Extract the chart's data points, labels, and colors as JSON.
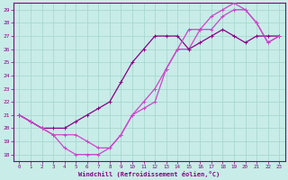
{
  "xlabel": "Windchill (Refroidissement éolien,°C)",
  "bg_color": "#c8ece8",
  "grid_color": "#a8d8d0",
  "line_color1": "#cc44cc",
  "line_color2": "#880088",
  "line_color3": "#cc44cc",
  "xlim": [
    0,
    23
  ],
  "ylim": [
    18,
    29
  ],
  "xticks": [
    0,
    1,
    2,
    3,
    4,
    5,
    6,
    7,
    8,
    9,
    10,
    11,
    12,
    13,
    14,
    15,
    16,
    17,
    18,
    19,
    20,
    21,
    22,
    23
  ],
  "yticks": [
    18,
    19,
    20,
    21,
    22,
    23,
    24,
    25,
    26,
    27,
    28,
    29
  ],
  "curve1_x": [
    0,
    1,
    2,
    3,
    4,
    5,
    6,
    7,
    8,
    9,
    10,
    11,
    12,
    13,
    14,
    15,
    16,
    17,
    18,
    19,
    20,
    21,
    22,
    23
  ],
  "curve1_y": [
    21.0,
    20.5,
    20.0,
    19.5,
    18.5,
    18.0,
    18.0,
    18.0,
    18.5,
    19.5,
    21.0,
    21.5,
    22.0,
    24.5,
    26.0,
    26.0,
    27.5,
    27.5,
    28.5,
    29.0,
    29.0,
    28.0,
    26.5,
    27.0
  ],
  "curve2_x": [
    0,
    1,
    2,
    3,
    4,
    5,
    6,
    7,
    8,
    9,
    10,
    11,
    12,
    13,
    14,
    15,
    16,
    17,
    18,
    19,
    20,
    21,
    22,
    23
  ],
  "curve2_y": [
    21.0,
    20.5,
    20.0,
    20.0,
    20.0,
    20.5,
    21.0,
    21.5,
    22.0,
    23.5,
    25.0,
    26.0,
    27.0,
    27.0,
    27.0,
    26.0,
    26.5,
    27.0,
    27.5,
    27.0,
    26.5,
    27.0,
    27.0,
    27.0
  ],
  "curve3_x": [
    0,
    1,
    2,
    3,
    4,
    5,
    6,
    7,
    8,
    9,
    10,
    11,
    12,
    13,
    14,
    15,
    16,
    17,
    18,
    19,
    20,
    21,
    22,
    23
  ],
  "curve3_y": [
    21.0,
    20.5,
    20.0,
    19.5,
    19.5,
    19.5,
    19.0,
    18.5,
    18.5,
    19.5,
    21.0,
    22.0,
    23.0,
    24.5,
    26.0,
    27.5,
    27.5,
    28.5,
    29.0,
    29.5,
    29.0,
    28.0,
    26.5,
    27.0
  ]
}
